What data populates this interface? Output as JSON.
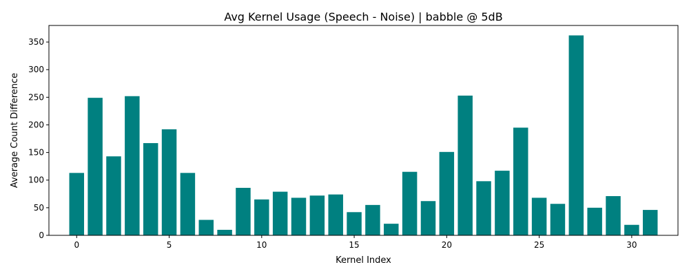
{
  "chart_data": {
    "type": "bar",
    "title": "Avg Kernel Usage (Speech - Noise) | babble @ 5dB",
    "xlabel": "Kernel Index",
    "ylabel": "Average Count Difference",
    "bar_color": "#008080",
    "xlim": [
      -1.5,
      32.5
    ],
    "ylim": [
      0,
      380
    ],
    "x_ticks": [
      0,
      5,
      10,
      15,
      20,
      25,
      30
    ],
    "y_ticks": [
      0,
      50,
      100,
      150,
      200,
      250,
      300,
      350
    ],
    "grid": false,
    "categories": [
      0,
      1,
      2,
      3,
      4,
      5,
      6,
      7,
      8,
      9,
      10,
      11,
      12,
      13,
      14,
      15,
      16,
      17,
      18,
      19,
      20,
      21,
      22,
      23,
      24,
      25,
      26,
      27,
      28,
      29,
      30,
      31
    ],
    "values": [
      113,
      249,
      143,
      252,
      167,
      192,
      113,
      28,
      10,
      86,
      65,
      79,
      68,
      72,
      74,
      42,
      55,
      21,
      115,
      62,
      151,
      253,
      98,
      117,
      195,
      68,
      57,
      362,
      50,
      71,
      19,
      46
    ]
  }
}
